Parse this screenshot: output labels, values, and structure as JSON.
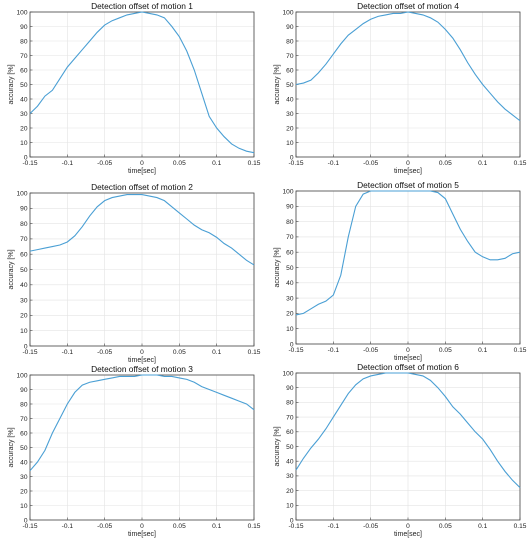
{
  "chart_data": [
    {
      "type": "line",
      "title": "Detection offset of motion 1",
      "xlabel": "time[sec]",
      "ylabel": "accuracy [%]",
      "xlim": [
        -0.15,
        0.15
      ],
      "ylim": [
        0,
        100
      ],
      "xticks": [
        "-0.15",
        "-0.1",
        "-0.05",
        "0",
        "0.05",
        "0.1",
        "0.15"
      ],
      "yticks": [
        "0",
        "10",
        "20",
        "30",
        "40",
        "50",
        "60",
        "70",
        "80",
        "90",
        "100"
      ],
      "grid": true,
      "x": [
        -0.15,
        -0.14,
        -0.13,
        -0.12,
        -0.11,
        -0.1,
        -0.09,
        -0.08,
        -0.07,
        -0.06,
        -0.05,
        -0.04,
        -0.03,
        -0.02,
        -0.01,
        0.0,
        0.01,
        0.02,
        0.03,
        0.04,
        0.05,
        0.06,
        0.07,
        0.08,
        0.09,
        0.1,
        0.11,
        0.12,
        0.13,
        0.14,
        0.15
      ],
      "y": [
        30,
        35,
        42,
        46,
        54,
        62,
        68,
        74,
        80,
        86,
        91,
        94,
        96,
        98,
        99,
        100,
        99,
        98,
        96,
        90,
        83,
        73,
        60,
        44,
        28,
        20,
        14,
        9,
        6,
        4,
        3
      ]
    },
    {
      "type": "line",
      "title": "Detection offset of motion 4",
      "xlabel": "time[sec]",
      "ylabel": "accuracy [%]",
      "xlim": [
        -0.15,
        0.15
      ],
      "ylim": [
        0,
        100
      ],
      "xticks": [
        "-0.15",
        "-0.1",
        "-0.05",
        "0",
        "0.05",
        "0.1",
        "0.15"
      ],
      "yticks": [
        "0",
        "10",
        "20",
        "30",
        "40",
        "50",
        "60",
        "70",
        "80",
        "90",
        "100"
      ],
      "grid": true,
      "x": [
        -0.15,
        -0.14,
        -0.13,
        -0.12,
        -0.11,
        -0.1,
        -0.09,
        -0.08,
        -0.07,
        -0.06,
        -0.05,
        -0.04,
        -0.03,
        -0.02,
        -0.01,
        0.0,
        0.01,
        0.02,
        0.03,
        0.04,
        0.05,
        0.06,
        0.07,
        0.08,
        0.09,
        0.1,
        0.11,
        0.12,
        0.13,
        0.14,
        0.15
      ],
      "y": [
        50,
        51,
        53,
        58,
        64,
        71,
        78,
        84,
        88,
        92,
        95,
        97,
        98,
        99,
        99,
        100,
        99,
        98,
        96,
        93,
        88,
        82,
        74,
        65,
        57,
        50,
        44,
        38,
        33,
        29,
        25
      ]
    },
    {
      "type": "line",
      "title": "Detection offset of motion 2",
      "xlabel": "time[sec]",
      "ylabel": "accuracy [%]",
      "xlim": [
        -0.15,
        0.15
      ],
      "ylim": [
        0,
        100
      ],
      "xticks": [
        "-0.15",
        "-0.1",
        "-0.05",
        "0",
        "0.05",
        "0.1",
        "0.15"
      ],
      "yticks": [
        "0",
        "10",
        "20",
        "30",
        "40",
        "50",
        "60",
        "70",
        "80",
        "90",
        "100"
      ],
      "grid": true,
      "x": [
        -0.15,
        -0.14,
        -0.13,
        -0.12,
        -0.11,
        -0.1,
        -0.09,
        -0.08,
        -0.07,
        -0.06,
        -0.05,
        -0.04,
        -0.03,
        -0.02,
        -0.01,
        0.0,
        0.01,
        0.02,
        0.03,
        0.04,
        0.05,
        0.06,
        0.07,
        0.08,
        0.09,
        0.1,
        0.11,
        0.12,
        0.13,
        0.14,
        0.15
      ],
      "y": [
        62,
        63,
        64,
        65,
        66,
        68,
        72,
        78,
        85,
        91,
        95,
        97,
        98,
        99,
        99,
        99,
        98,
        97,
        95,
        91,
        87,
        83,
        79,
        76,
        74,
        71,
        67,
        64,
        60,
        56,
        53
      ]
    },
    {
      "type": "line",
      "title": "Detection offset of motion 5",
      "xlabel": "time[sec]",
      "ylabel": "accuracy [%]",
      "xlim": [
        -0.15,
        0.15
      ],
      "ylim": [
        0,
        100
      ],
      "xticks": [
        "-0.15",
        "-0.1",
        "-0.05",
        "0",
        "0.05",
        "0.1",
        "0.15"
      ],
      "yticks": [
        "0",
        "10",
        "20",
        "30",
        "40",
        "50",
        "60",
        "70",
        "80",
        "90",
        "100"
      ],
      "grid": true,
      "x": [
        -0.15,
        -0.14,
        -0.13,
        -0.12,
        -0.11,
        -0.1,
        -0.09,
        -0.08,
        -0.07,
        -0.06,
        -0.05,
        -0.04,
        -0.03,
        -0.02,
        -0.01,
        0.0,
        0.01,
        0.02,
        0.03,
        0.04,
        0.05,
        0.06,
        0.07,
        0.08,
        0.09,
        0.1,
        0.11,
        0.12,
        0.13,
        0.14,
        0.15
      ],
      "y": [
        19,
        20,
        23,
        26,
        28,
        32,
        45,
        70,
        90,
        98,
        100,
        100,
        100,
        100,
        100,
        100,
        100,
        100,
        100,
        99,
        95,
        85,
        75,
        67,
        60,
        57,
        55,
        55,
        56,
        59,
        60
      ]
    },
    {
      "type": "line",
      "title": "Detection offset of motion 3",
      "xlabel": "time[sec]",
      "ylabel": "accuracy [%]",
      "xlim": [
        -0.15,
        0.15
      ],
      "ylim": [
        0,
        100
      ],
      "xticks": [
        "-0.15",
        "-0.1",
        "-0.05",
        "0",
        "0.05",
        "0.1",
        "0.15"
      ],
      "yticks": [
        "0",
        "10",
        "20",
        "30",
        "40",
        "50",
        "60",
        "70",
        "80",
        "90",
        "100"
      ],
      "grid": true,
      "x": [
        -0.15,
        -0.14,
        -0.13,
        -0.12,
        -0.11,
        -0.1,
        -0.09,
        -0.08,
        -0.07,
        -0.06,
        -0.05,
        -0.04,
        -0.03,
        -0.02,
        -0.01,
        0.0,
        0.01,
        0.02,
        0.03,
        0.04,
        0.05,
        0.06,
        0.07,
        0.08,
        0.09,
        0.1,
        0.11,
        0.12,
        0.13,
        0.14,
        0.15
      ],
      "y": [
        34,
        40,
        48,
        60,
        70,
        80,
        88,
        93,
        95,
        96,
        97,
        98,
        99,
        99,
        99,
        100,
        100,
        100,
        99,
        99,
        98,
        97,
        95,
        92,
        90,
        88,
        86,
        84,
        82,
        80,
        76
      ]
    },
    {
      "type": "line",
      "title": "Detection offset of motion 6",
      "xlabel": "time[sec]",
      "ylabel": "accuracy [%]",
      "xlim": [
        -0.15,
        0.15
      ],
      "ylim": [
        0,
        100
      ],
      "xticks": [
        "-0.15",
        "-0.1",
        "-0.05",
        "0",
        "0.05",
        "0.1",
        "0.15"
      ],
      "yticks": [
        "0",
        "10",
        "20",
        "30",
        "40",
        "50",
        "60",
        "70",
        "80",
        "90",
        "100"
      ],
      "grid": true,
      "x": [
        -0.15,
        -0.14,
        -0.13,
        -0.12,
        -0.11,
        -0.1,
        -0.09,
        -0.08,
        -0.07,
        -0.06,
        -0.05,
        -0.04,
        -0.03,
        -0.02,
        -0.01,
        0.0,
        0.01,
        0.02,
        0.03,
        0.04,
        0.05,
        0.06,
        0.07,
        0.08,
        0.09,
        0.1,
        0.11,
        0.12,
        0.13,
        0.14,
        0.15
      ],
      "y": [
        34,
        42,
        49,
        55,
        62,
        70,
        78,
        86,
        92,
        96,
        98,
        99,
        100,
        100,
        100,
        100,
        99,
        98,
        95,
        90,
        84,
        77,
        72,
        66,
        60,
        55,
        48,
        40,
        33,
        27,
        22
      ]
    }
  ]
}
